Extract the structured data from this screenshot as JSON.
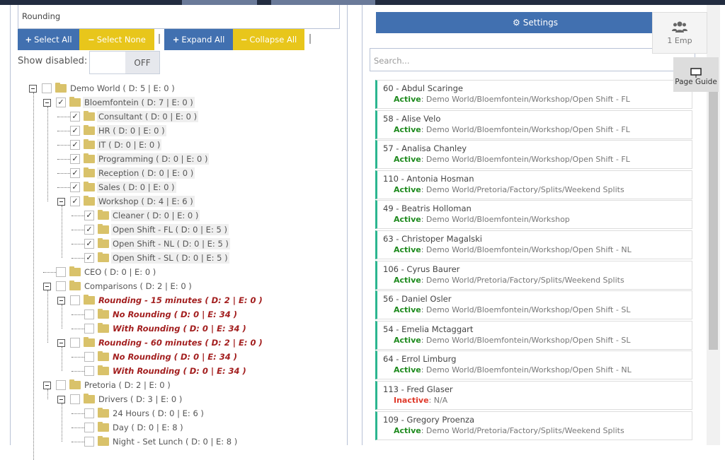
{
  "filter": {
    "value": "Rounding"
  },
  "toolbar": {
    "select_all": "Select All",
    "select_none": "Select None",
    "expand_all": "Expand All",
    "collapse_all": "Collapse All"
  },
  "show_disabled": {
    "label": "Show disabled:",
    "state": "OFF"
  },
  "tree": [
    {
      "label": "Demo World ( D: 5 | E: 0 )",
      "level": 0,
      "expander": true,
      "checked": false,
      "style": "normal"
    },
    {
      "label": "Bloemfontein ( D: 7 | E: 0 )",
      "level": 1,
      "expander": true,
      "checked": true,
      "style": "hl"
    },
    {
      "label": "Consultant ( D: 0 | E: 0 )",
      "level": 2,
      "expander": false,
      "checked": true,
      "style": "hl"
    },
    {
      "label": "HR ( D: 0 | E: 0 )",
      "level": 2,
      "expander": false,
      "checked": true,
      "style": "hl"
    },
    {
      "label": "IT ( D: 0 | E: 0 )",
      "level": 2,
      "expander": false,
      "checked": true,
      "style": "hl"
    },
    {
      "label": "Programming ( D: 0 | E: 0 )",
      "level": 2,
      "expander": false,
      "checked": true,
      "style": "hl"
    },
    {
      "label": "Reception ( D: 0 | E: 0 )",
      "level": 2,
      "expander": false,
      "checked": true,
      "style": "hl"
    },
    {
      "label": "Sales ( D: 0 | E: 0 )",
      "level": 2,
      "expander": false,
      "checked": true,
      "style": "hl"
    },
    {
      "label": "Workshop ( D: 4 | E: 6 )",
      "level": 2,
      "expander": true,
      "checked": true,
      "style": "hl"
    },
    {
      "label": "Cleaner ( D: 0 | E: 0 )",
      "level": 3,
      "expander": false,
      "checked": true,
      "style": "hl"
    },
    {
      "label": "Open Shift - FL ( D: 0 | E: 5 )",
      "level": 3,
      "expander": false,
      "checked": true,
      "style": "hl"
    },
    {
      "label": "Open Shift - NL ( D: 0 | E: 5 )",
      "level": 3,
      "expander": false,
      "checked": true,
      "style": "hl"
    },
    {
      "label": "Open Shift - SL ( D: 0 | E: 5 )",
      "level": 3,
      "expander": false,
      "checked": true,
      "style": "hl"
    },
    {
      "label": "CEO ( D: 0 | E: 0 )",
      "level": 1,
      "expander": false,
      "checked": false,
      "style": "normal"
    },
    {
      "label": "Comparisons ( D: 2 | E: 0 )",
      "level": 1,
      "expander": true,
      "checked": false,
      "style": "normal"
    },
    {
      "label": "Rounding - 15 minutes ( D: 2 | E: 0 )",
      "level": 2,
      "expander": true,
      "checked": false,
      "style": "red"
    },
    {
      "label": "No Rounding ( D: 0 | E: 34 )",
      "level": 3,
      "expander": false,
      "checked": false,
      "style": "red"
    },
    {
      "label": "With Rounding ( D: 0 | E: 34 )",
      "level": 3,
      "expander": false,
      "checked": false,
      "style": "red"
    },
    {
      "label": "Rounding - 60 minutes ( D: 2 | E: 0 )",
      "level": 2,
      "expander": true,
      "checked": false,
      "style": "red"
    },
    {
      "label": "No Rounding ( D: 0 | E: 34 )",
      "level": 3,
      "expander": false,
      "checked": false,
      "style": "red"
    },
    {
      "label": "With Rounding ( D: 0 | E: 34 )",
      "level": 3,
      "expander": false,
      "checked": false,
      "style": "red"
    },
    {
      "label": "Pretoria ( D: 2 | E: 0 )",
      "level": 1,
      "expander": true,
      "checked": false,
      "style": "normal"
    },
    {
      "label": "Drivers ( D: 3 | E: 0 )",
      "level": 2,
      "expander": true,
      "checked": false,
      "style": "normal"
    },
    {
      "label": "24 Hours ( D: 0 | E: 6 )",
      "level": 3,
      "expander": false,
      "checked": false,
      "style": "normal"
    },
    {
      "label": "Day ( D: 0 | E: 8 )",
      "level": 3,
      "expander": false,
      "checked": false,
      "style": "normal"
    },
    {
      "label": "Night - Set Lunch ( D: 0 | E: 8 )",
      "level": 3,
      "expander": false,
      "checked": false,
      "style": "normal"
    }
  ],
  "settings": {
    "label": "Settings",
    "icon": "gears-icon"
  },
  "emp_badge": {
    "label": "1 Emp",
    "icon": "users-icon"
  },
  "page_guide": {
    "label": "Page Guide",
    "icon": "presentation-icon"
  },
  "search": {
    "placeholder": "Search...",
    "value": ""
  },
  "employees": [
    {
      "name": "60 - Abdul Scaringe",
      "status": "Active",
      "path": "Demo World/Bloemfontein/Workshop/Open Shift - FL"
    },
    {
      "name": "58 - Alise Velo",
      "status": "Active",
      "path": "Demo World/Bloemfontein/Workshop/Open Shift - FL"
    },
    {
      "name": "57 - Analisa Chanley",
      "status": "Active",
      "path": "Demo World/Bloemfontein/Workshop/Open Shift - FL"
    },
    {
      "name": "110 - Antonia Hosman",
      "status": "Active",
      "path": "Demo World/Pretoria/Factory/Splits/Weekend Splits"
    },
    {
      "name": "49 - Beatris Holloman",
      "status": "Active",
      "path": "Demo World/Bloemfontein/Workshop"
    },
    {
      "name": "63 - Christoper Magalski",
      "status": "Active",
      "path": "Demo World/Bloemfontein/Workshop/Open Shift - NL"
    },
    {
      "name": "106 - Cyrus Baurer",
      "status": "Active",
      "path": "Demo World/Pretoria/Factory/Splits/Weekend Splits"
    },
    {
      "name": "56 - Daniel Osler",
      "status": "Active",
      "path": "Demo World/Bloemfontein/Workshop/Open Shift - SL"
    },
    {
      "name": "54 - Emelia Mctaggart",
      "status": "Active",
      "path": "Demo World/Bloemfontein/Workshop/Open Shift - SL"
    },
    {
      "name": "64 - Errol Limburg",
      "status": "Active",
      "path": "Demo World/Bloemfontein/Workshop/Open Shift - NL"
    },
    {
      "name": "113 - Fred Glaser",
      "status": "Inactive",
      "path": "N/A"
    },
    {
      "name": "109 - Gregory Proenza",
      "status": "Active",
      "path": "Demo World/Pretoria/Factory/Splits/Weekend Splits"
    }
  ],
  "colors": {
    "primary": "#4170b0",
    "warning": "#e8c61b",
    "active": "#1e8a1e",
    "inactive": "#e03a2b",
    "accent_border": "#2bb58f",
    "error_node": "#a31f1f"
  }
}
